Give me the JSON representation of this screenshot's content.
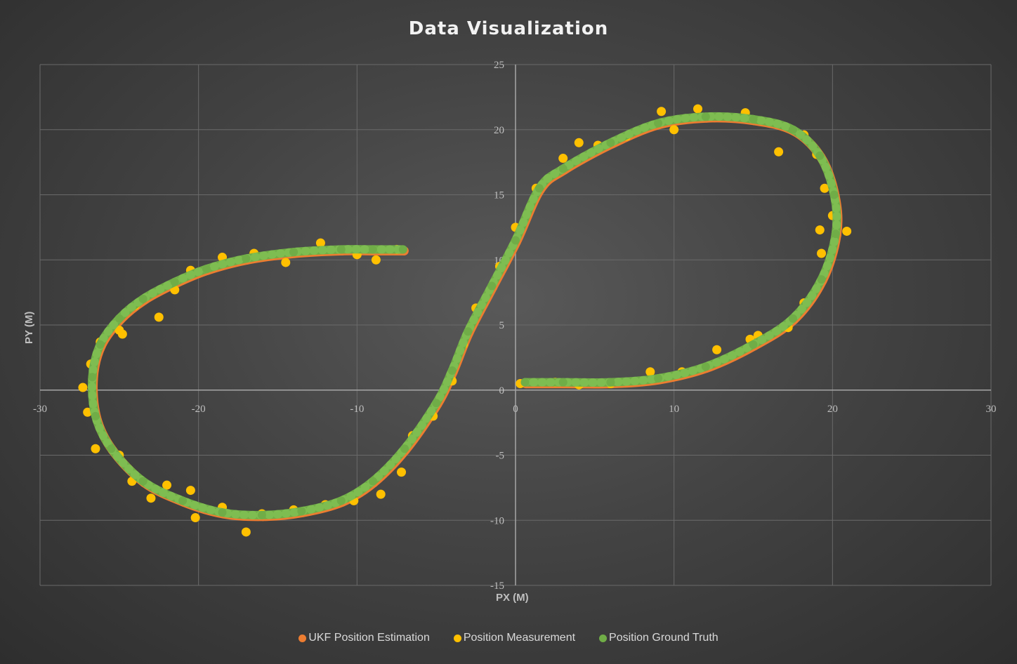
{
  "chart_data": {
    "type": "scatter",
    "title": "Data Visualization",
    "xlabel": "PX (M)",
    "ylabel": "PY (M)",
    "xlim": [
      -30,
      30
    ],
    "ylim": [
      -15,
      25
    ],
    "x_ticks": [
      -30,
      -20,
      -10,
      0,
      10,
      20,
      30
    ],
    "y_ticks": [
      -15,
      -10,
      -5,
      0,
      5,
      10,
      15,
      20,
      25
    ],
    "x_tick_labels": [
      "-30",
      "-20",
      "-10",
      "0",
      "10",
      "20",
      "30"
    ],
    "y_tick_labels": [
      "-15",
      "-10",
      "-5",
      "0",
      "5",
      "10",
      "15",
      "20",
      "25"
    ],
    "grid": true,
    "legend_position": "bottom",
    "series": [
      {
        "name": "UKF Position Estimation",
        "color": "#ed7d31",
        "x": [
          0.6,
          3,
          6,
          9,
          12,
          15,
          17.5,
          19.3,
          20.2,
          20.1,
          19.2,
          17.5,
          15,
          12,
          9,
          6,
          3,
          1.5,
          0,
          -1.5,
          -3,
          -4,
          -5,
          -7,
          -9,
          -11,
          -13.5,
          -16,
          -18.5,
          -21,
          -23.5,
          -25.5,
          -26.5,
          -26.7,
          -26.2,
          -25,
          -23.5,
          -21.5,
          -19.5,
          -17,
          -14,
          -11,
          -9,
          -7.1
        ],
        "y": [
          0.6,
          0.6,
          0.6,
          0.9,
          1.8,
          3.5,
          5.5,
          8.5,
          12,
          15,
          18,
          20,
          20.8,
          21,
          20.5,
          19,
          17,
          15.5,
          11.5,
          8,
          4.5,
          1.5,
          -1,
          -4.5,
          -7,
          -8.5,
          -9.3,
          -9.6,
          -9.4,
          -8.5,
          -7,
          -4.5,
          -2,
          1,
          3.5,
          5.5,
          7,
          8.3,
          9.3,
          10.1,
          10.6,
          10.8,
          10.8,
          10.8
        ]
      },
      {
        "name": "Position Measurement",
        "color": "#ffc000",
        "x": [
          0.3,
          2.5,
          4,
          6,
          8.5,
          10.5,
          12.7,
          14.8,
          15.3,
          17.2,
          18.2,
          19.3,
          19.2,
          20.9,
          20,
          19.5,
          19,
          18.2,
          16.6,
          14.5,
          11.5,
          10,
          9.2,
          7,
          5.2,
          4,
          3,
          1.3,
          0,
          -1,
          -2.5,
          -3.3,
          -4,
          -5.2,
          -6.5,
          -7.2,
          -8.5,
          -10.2,
          -12,
          -14,
          -16,
          -17,
          -18.5,
          -20.2,
          -20.5,
          -22,
          -23,
          -24.2,
          -25,
          -26.5,
          -27,
          -27.3,
          -26.8,
          -26.2,
          -25,
          -24.8,
          -24,
          -22.5,
          -21.5,
          -20.5,
          -18.5,
          -16.5,
          -14.5,
          -12.3,
          -10,
          -8.8,
          -7.5
        ],
        "y": [
          0.5,
          0.6,
          0.4,
          0.5,
          1.4,
          1.4,
          3.1,
          3.9,
          4.2,
          4.8,
          6.7,
          10.5,
          12.3,
          12.2,
          13.4,
          15.5,
          18.1,
          19.6,
          18.3,
          21.3,
          21.6,
          20,
          21.4,
          19.5,
          18.8,
          19,
          17.8,
          15.5,
          12.5,
          9.5,
          6.3,
          3.5,
          0.7,
          -2,
          -3.5,
          -6.3,
          -8,
          -8.5,
          -8.8,
          -9.2,
          -9.5,
          -10.9,
          -9,
          -9.8,
          -7.7,
          -7.3,
          -8.3,
          -7,
          -5,
          -4.5,
          -1.7,
          0.2,
          2,
          3.7,
          4.6,
          4.3,
          6.5,
          5.6,
          7.7,
          9.2,
          10.2,
          10.5,
          9.8,
          11.3,
          10.4,
          10,
          10.8
        ]
      },
      {
        "name": "Position Ground Truth",
        "color": "#70ad47",
        "x": [
          0.6,
          3,
          6,
          9,
          12,
          15,
          17.5,
          19.3,
          20.2,
          20.1,
          19.2,
          17.5,
          15,
          12,
          9,
          6,
          3,
          1.5,
          0,
          -1.5,
          -3,
          -4,
          -5,
          -7,
          -9,
          -11,
          -13.5,
          -16,
          -18.5,
          -21,
          -23.5,
          -25.5,
          -26.5,
          -26.7,
          -26.2,
          -25,
          -23.5,
          -21.5,
          -19.5,
          -17,
          -14,
          -11,
          -9,
          -7.1
        ],
        "y": [
          0.6,
          0.6,
          0.6,
          0.9,
          1.8,
          3.5,
          5.5,
          8.5,
          12,
          15,
          18,
          20,
          20.8,
          21,
          20.5,
          19,
          17,
          15.5,
          11.5,
          8,
          4.5,
          1.5,
          -1,
          -4.5,
          -7,
          -8.5,
          -9.3,
          -9.6,
          -9.4,
          -8.5,
          -7,
          -4.5,
          -2,
          1,
          3.5,
          5.5,
          7,
          8.3,
          9.3,
          10.1,
          10.6,
          10.8,
          10.8,
          10.8
        ]
      }
    ]
  }
}
